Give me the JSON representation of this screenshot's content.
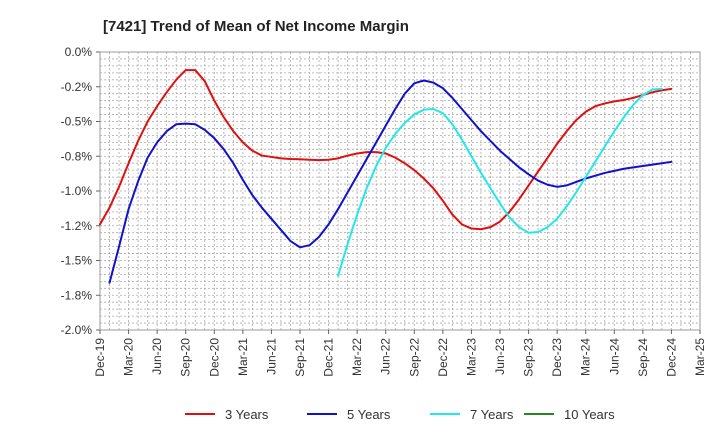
{
  "chart_data": {
    "type": "line",
    "title": "[7421]  Trend of Mean of Net Income Margin",
    "xlabel": "",
    "ylabel": "",
    "ylim": [
      -2.0,
      0.0
    ],
    "yticks": [
      {
        "value": 0.0,
        "label": "0.0%"
      },
      {
        "value": -0.25,
        "label": "-0.2%"
      },
      {
        "value": -0.5,
        "label": "-0.5%"
      },
      {
        "value": -0.75,
        "label": "-0.8%"
      },
      {
        "value": -1.0,
        "label": "-1.0%"
      },
      {
        "value": -1.25,
        "label": "-1.2%"
      },
      {
        "value": -1.5,
        "label": "-1.5%"
      },
      {
        "value": -1.75,
        "label": "-1.8%"
      },
      {
        "value": -2.0,
        "label": "-2.0%"
      }
    ],
    "xticks": [
      "Dec-19",
      "Mar-20",
      "Jun-20",
      "Sep-20",
      "Dec-20",
      "Mar-21",
      "Jun-21",
      "Sep-21",
      "Dec-21",
      "Mar-22",
      "Jun-22",
      "Sep-22",
      "Dec-22",
      "Mar-23",
      "Jun-23",
      "Sep-23",
      "Dec-23",
      "Mar-24",
      "Jun-24",
      "Sep-24",
      "Dec-24",
      "Mar-25"
    ],
    "grid": true,
    "legend_position": "bottom",
    "series": [
      {
        "name": "3 Years",
        "color": "#dd1111",
        "points": [
          [
            0,
            -1.24
          ],
          [
            1,
            -1.12
          ],
          [
            2,
            -0.97
          ],
          [
            3,
            -0.8
          ],
          [
            4,
            -0.64
          ],
          [
            5,
            -0.5
          ],
          [
            6,
            -0.39
          ],
          [
            7,
            -0.29
          ],
          [
            8,
            -0.2
          ],
          [
            9,
            -0.13
          ],
          [
            10,
            -0.13
          ],
          [
            11,
            -0.21
          ],
          [
            12,
            -0.35
          ],
          [
            13,
            -0.47
          ],
          [
            14,
            -0.57
          ],
          [
            15,
            -0.65
          ],
          [
            16,
            -0.71
          ],
          [
            17,
            -0.745
          ],
          [
            18,
            -0.755
          ],
          [
            19,
            -0.765
          ],
          [
            20,
            -0.77
          ],
          [
            21,
            -0.772
          ],
          [
            22,
            -0.775
          ],
          [
            23,
            -0.778
          ],
          [
            24,
            -0.775
          ],
          [
            25,
            -0.765
          ],
          [
            26,
            -0.745
          ],
          [
            27,
            -0.73
          ],
          [
            28,
            -0.72
          ],
          [
            29,
            -0.72
          ],
          [
            30,
            -0.73
          ],
          [
            31,
            -0.76
          ],
          [
            32,
            -0.8
          ],
          [
            33,
            -0.85
          ],
          [
            34,
            -0.91
          ],
          [
            35,
            -0.98
          ],
          [
            36,
            -1.07
          ],
          [
            37,
            -1.17
          ],
          [
            38,
            -1.24
          ],
          [
            39,
            -1.27
          ],
          [
            40,
            -1.275
          ],
          [
            41,
            -1.26
          ],
          [
            42,
            -1.22
          ],
          [
            43,
            -1.15
          ],
          [
            44,
            -1.06
          ],
          [
            45,
            -0.96
          ],
          [
            46,
            -0.86
          ],
          [
            47,
            -0.76
          ],
          [
            48,
            -0.66
          ],
          [
            49,
            -0.57
          ],
          [
            50,
            -0.49
          ],
          [
            51,
            -0.43
          ],
          [
            52,
            -0.39
          ],
          [
            53,
            -0.37
          ],
          [
            54,
            -0.355
          ],
          [
            55,
            -0.345
          ],
          [
            56,
            -0.33
          ],
          [
            57,
            -0.31
          ],
          [
            58,
            -0.29
          ],
          [
            59,
            -0.275
          ],
          [
            60,
            -0.265
          ]
        ]
      },
      {
        "name": "5 Years",
        "color": "#1111cc",
        "points": [
          [
            1,
            -1.66
          ],
          [
            2,
            -1.4
          ],
          [
            3,
            -1.13
          ],
          [
            4,
            -0.93
          ],
          [
            5,
            -0.76
          ],
          [
            6,
            -0.65
          ],
          [
            7,
            -0.57
          ],
          [
            8,
            -0.52
          ],
          [
            9,
            -0.515
          ],
          [
            10,
            -0.52
          ],
          [
            11,
            -0.56
          ],
          [
            12,
            -0.62
          ],
          [
            13,
            -0.7
          ],
          [
            14,
            -0.8
          ],
          [
            15,
            -0.92
          ],
          [
            16,
            -1.03
          ],
          [
            17,
            -1.12
          ],
          [
            18,
            -1.2
          ],
          [
            19,
            -1.28
          ],
          [
            20,
            -1.36
          ],
          [
            21,
            -1.405
          ],
          [
            22,
            -1.39
          ],
          [
            23,
            -1.33
          ],
          [
            24,
            -1.24
          ],
          [
            25,
            -1.13
          ],
          [
            26,
            -1.01
          ],
          [
            27,
            -0.89
          ],
          [
            28,
            -0.77
          ],
          [
            29,
            -0.65
          ],
          [
            30,
            -0.53
          ],
          [
            31,
            -0.41
          ],
          [
            32,
            -0.3
          ],
          [
            33,
            -0.225
          ],
          [
            34,
            -0.205
          ],
          [
            35,
            -0.22
          ],
          [
            36,
            -0.26
          ],
          [
            37,
            -0.33
          ],
          [
            38,
            -0.41
          ],
          [
            39,
            -0.49
          ],
          [
            40,
            -0.57
          ],
          [
            41,
            -0.64
          ],
          [
            42,
            -0.71
          ],
          [
            43,
            -0.77
          ],
          [
            44,
            -0.83
          ],
          [
            45,
            -0.88
          ],
          [
            46,
            -0.925
          ],
          [
            47,
            -0.955
          ],
          [
            48,
            -0.97
          ],
          [
            49,
            -0.96
          ],
          [
            50,
            -0.935
          ],
          [
            51,
            -0.91
          ],
          [
            52,
            -0.89
          ],
          [
            53,
            -0.87
          ],
          [
            54,
            -0.855
          ],
          [
            55,
            -0.84
          ],
          [
            56,
            -0.83
          ],
          [
            57,
            -0.82
          ],
          [
            58,
            -0.81
          ],
          [
            59,
            -0.8
          ],
          [
            60,
            -0.79
          ]
        ]
      },
      {
        "name": "7 Years",
        "color": "#22e8e8",
        "points": [
          [
            25,
            -1.61
          ],
          [
            26,
            -1.38
          ],
          [
            27,
            -1.17
          ],
          [
            28,
            -0.98
          ],
          [
            29,
            -0.82
          ],
          [
            30,
            -0.69
          ],
          [
            31,
            -0.59
          ],
          [
            32,
            -0.51
          ],
          [
            33,
            -0.45
          ],
          [
            34,
            -0.415
          ],
          [
            35,
            -0.41
          ],
          [
            36,
            -0.44
          ],
          [
            37,
            -0.52
          ],
          [
            38,
            -0.63
          ],
          [
            39,
            -0.75
          ],
          [
            40,
            -0.87
          ],
          [
            41,
            -0.98
          ],
          [
            42,
            -1.09
          ],
          [
            43,
            -1.19
          ],
          [
            44,
            -1.26
          ],
          [
            45,
            -1.3
          ],
          [
            46,
            -1.295
          ],
          [
            47,
            -1.26
          ],
          [
            48,
            -1.2
          ],
          [
            49,
            -1.11
          ],
          [
            50,
            -1.01
          ],
          [
            51,
            -0.9
          ],
          [
            52,
            -0.79
          ],
          [
            53,
            -0.68
          ],
          [
            54,
            -0.57
          ],
          [
            55,
            -0.47
          ],
          [
            56,
            -0.38
          ],
          [
            57,
            -0.31
          ],
          [
            58,
            -0.27
          ],
          [
            59,
            -0.265
          ]
        ]
      },
      {
        "name": "10 Years",
        "color": "#228822",
        "points": []
      }
    ]
  }
}
